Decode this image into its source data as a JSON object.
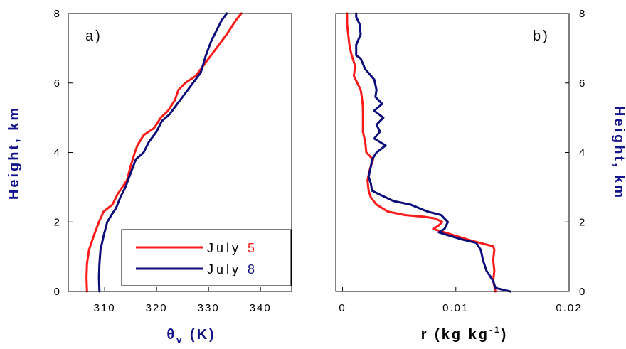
{
  "colors": {
    "july5": "#ff1a1a",
    "july8": "#0d0d7a",
    "axis_title": "#14148c",
    "frame": "#000000"
  },
  "legend": {
    "entries": [
      {
        "label": "July ",
        "number": "5",
        "series": "July 5"
      },
      {
        "label": "July ",
        "number": "8",
        "series": "July 8"
      }
    ]
  },
  "chart_data": [
    {
      "type": "line",
      "panel_label": "a)",
      "xlabel": {
        "main": "θ",
        "sub": "v",
        "rest": " (K)"
      },
      "ylabel": "Height, km",
      "xlim": [
        303,
        346
      ],
      "ylim": [
        0,
        8
      ],
      "xticks": [
        310,
        320,
        330,
        340
      ],
      "yticks": [
        0,
        2,
        4,
        6,
        8
      ],
      "legend_position": "bottom-right",
      "series": [
        {
          "name": "July 5",
          "points": [
            [
              306.6,
              0.0
            ],
            [
              306.5,
              0.4
            ],
            [
              306.6,
              0.8
            ],
            [
              307.0,
              1.2
            ],
            [
              307.9,
              1.6
            ],
            [
              308.9,
              2.0
            ],
            [
              309.8,
              2.3
            ],
            [
              311.5,
              2.5
            ],
            [
              312.5,
              2.8
            ],
            [
              314.3,
              3.2
            ],
            [
              315.0,
              3.6
            ],
            [
              315.8,
              4.0
            ],
            [
              316.3,
              4.2
            ],
            [
              317.5,
              4.5
            ],
            [
              319.5,
              4.7
            ],
            [
              320.8,
              5.0
            ],
            [
              322.2,
              5.2
            ],
            [
              323.5,
              5.5
            ],
            [
              324.2,
              5.8
            ],
            [
              325.5,
              6.0
            ],
            [
              327.5,
              6.2
            ],
            [
              329.0,
              6.5
            ],
            [
              330.5,
              6.8
            ],
            [
              332.0,
              7.1
            ],
            [
              333.5,
              7.4
            ],
            [
              334.8,
              7.7
            ],
            [
              335.5,
              7.85
            ],
            [
              336.3,
              8.0
            ]
          ]
        },
        {
          "name": "July 8",
          "points": [
            [
              309.0,
              0.0
            ],
            [
              308.9,
              0.4
            ],
            [
              309.0,
              0.8
            ],
            [
              309.2,
              1.2
            ],
            [
              309.8,
              1.6
            ],
            [
              310.5,
              2.0
            ],
            [
              311.3,
              2.2
            ],
            [
              312.2,
              2.4
            ],
            [
              313.0,
              2.7
            ],
            [
              314.0,
              3.0
            ],
            [
              315.0,
              3.4
            ],
            [
              316.0,
              3.8
            ],
            [
              317.5,
              4.0
            ],
            [
              318.5,
              4.3
            ],
            [
              320.0,
              4.6
            ],
            [
              321.0,
              4.9
            ],
            [
              322.5,
              5.1
            ],
            [
              324.0,
              5.4
            ],
            [
              325.5,
              5.7
            ],
            [
              327.5,
              6.1
            ],
            [
              328.5,
              6.3
            ],
            [
              329.5,
              6.8
            ],
            [
              330.5,
              7.2
            ],
            [
              331.5,
              7.5
            ],
            [
              332.5,
              7.8
            ],
            [
              333.5,
              8.0
            ]
          ]
        }
      ]
    },
    {
      "type": "line",
      "panel_label": "b)",
      "xlabel": {
        "main": "r (kg kg",
        "sup": "-1",
        "rest": ")"
      },
      "ylabel": "Height, km",
      "xlim": [
        -0.0006,
        0.02
      ],
      "ylim": [
        0,
        8
      ],
      "xticks": [
        0,
        0.01,
        0.02
      ],
      "xtick_labels": [
        "0",
        "0.01",
        "0.02"
      ],
      "yticks": [
        0,
        2,
        4,
        6,
        8
      ],
      "series": [
        {
          "name": "July 5",
          "points": [
            [
              0.0135,
              0.0
            ],
            [
              0.0133,
              0.3
            ],
            [
              0.0134,
              0.6
            ],
            [
              0.0133,
              0.9
            ],
            [
              0.0134,
              1.2
            ],
            [
              0.0133,
              1.3
            ],
            [
              0.0115,
              1.45
            ],
            [
              0.01,
              1.6
            ],
            [
              0.009,
              1.7
            ],
            [
              0.008,
              1.8
            ],
            [
              0.0085,
              1.9
            ],
            [
              0.0088,
              2.0
            ],
            [
              0.0082,
              2.1
            ],
            [
              0.0072,
              2.15
            ],
            [
              0.0055,
              2.2
            ],
            [
              0.004,
              2.3
            ],
            [
              0.003,
              2.5
            ],
            [
              0.0025,
              2.7
            ],
            [
              0.0023,
              2.9
            ],
            [
              0.0022,
              3.2
            ],
            [
              0.0024,
              3.5
            ],
            [
              0.0027,
              3.8
            ],
            [
              0.0021,
              4.0
            ],
            [
              0.002,
              4.3
            ],
            [
              0.0018,
              4.6
            ],
            [
              0.0018,
              5.0
            ],
            [
              0.0018,
              5.3
            ],
            [
              0.0017,
              5.6
            ],
            [
              0.0016,
              5.8
            ],
            [
              0.0013,
              6.0
            ],
            [
              0.001,
              6.2
            ],
            [
              0.0011,
              6.5
            ],
            [
              0.0008,
              6.8
            ],
            [
              0.0006,
              7.1
            ],
            [
              0.0005,
              7.4
            ],
            [
              0.0004,
              7.7
            ],
            [
              0.0004,
              8.0
            ]
          ]
        },
        {
          "name": "July 8",
          "points": [
            [
              0.0148,
              0.0
            ],
            [
              0.0135,
              0.1
            ],
            [
              0.0133,
              0.3
            ],
            [
              0.0127,
              0.6
            ],
            [
              0.0124,
              0.9
            ],
            [
              0.0122,
              1.2
            ],
            [
              0.0118,
              1.4
            ],
            [
              0.0105,
              1.5
            ],
            [
              0.0095,
              1.6
            ],
            [
              0.0085,
              1.7
            ],
            [
              0.009,
              1.8
            ],
            [
              0.0093,
              2.0
            ],
            [
              0.0087,
              2.2
            ],
            [
              0.0075,
              2.3
            ],
            [
              0.006,
              2.5
            ],
            [
              0.0045,
              2.6
            ],
            [
              0.0032,
              2.8
            ],
            [
              0.0026,
              2.9
            ],
            [
              0.0025,
              3.1
            ],
            [
              0.0023,
              3.3
            ],
            [
              0.0025,
              3.6
            ],
            [
              0.0026,
              3.8
            ],
            [
              0.003,
              4.0
            ],
            [
              0.0038,
              4.2
            ],
            [
              0.0028,
              4.4
            ],
            [
              0.0033,
              4.6
            ],
            [
              0.003,
              4.8
            ],
            [
              0.0036,
              5.0
            ],
            [
              0.0028,
              5.2
            ],
            [
              0.0035,
              5.4
            ],
            [
              0.0029,
              5.6
            ],
            [
              0.003,
              5.8
            ],
            [
              0.0028,
              6.1
            ],
            [
              0.002,
              6.4
            ],
            [
              0.0016,
              6.7
            ],
            [
              0.0012,
              6.8
            ],
            [
              0.0012,
              7.1
            ],
            [
              0.0016,
              7.4
            ],
            [
              0.0015,
              7.7
            ],
            [
              0.0012,
              7.9
            ],
            [
              0.0012,
              8.0
            ]
          ]
        }
      ]
    }
  ]
}
